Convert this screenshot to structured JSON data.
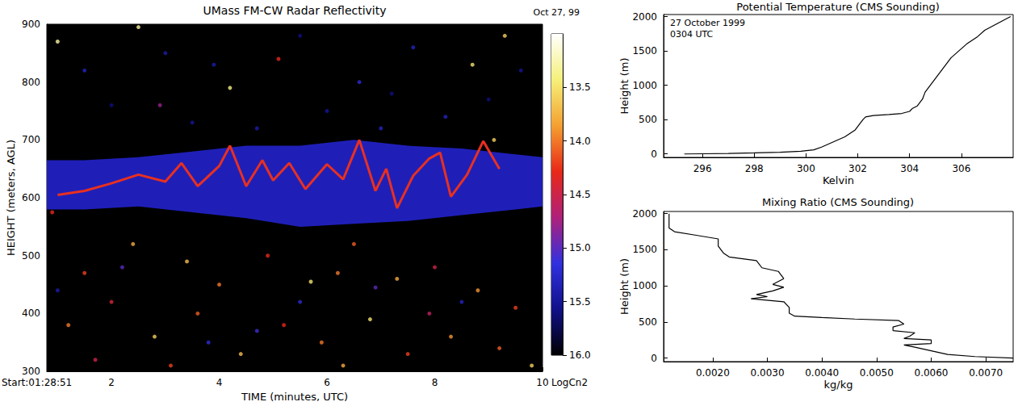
{
  "chart_data": [
    {
      "type": "image",
      "title": "UMass FM-CW Radar Reflectivity",
      "subtitle": "Oct 27, 99",
      "x_label": "TIME (minutes, UTC)",
      "y_label": "HEIGHT (meters, AGL)",
      "annotation": "Start:01:28:51",
      "xlim": [
        0.8,
        10
      ],
      "xticks": [
        2,
        4,
        6,
        8,
        10
      ],
      "ylim": [
        300,
        900
      ],
      "yticks": [
        300,
        400,
        500,
        600,
        700,
        800,
        900
      ],
      "grid": false,
      "layer": {
        "color": "#2424d8",
        "x": [
          0.8,
          1.5,
          2.5,
          3.5,
          4.5,
          5.5,
          6.5,
          7.5,
          8.5,
          9.5,
          10
        ],
        "lower": [
          580,
          580,
          585,
          575,
          565,
          550,
          555,
          560,
          570,
          580,
          585
        ],
        "upper": [
          665,
          665,
          670,
          680,
          690,
          690,
          700,
          690,
          685,
          675,
          670
        ]
      },
      "core": {
        "color": "#e83020",
        "x": [
          1.0,
          1.5,
          2.0,
          2.5,
          3.0,
          3.3,
          3.6,
          4.0,
          4.2,
          4.5,
          4.8,
          5.0,
          5.3,
          5.6,
          6.0,
          6.3,
          6.6,
          6.9,
          7.1,
          7.3,
          7.6,
          7.9,
          8.1,
          8.3,
          8.6,
          8.9,
          9.2
        ],
        "values": [
          605,
          612,
          625,
          640,
          628,
          660,
          620,
          655,
          690,
          620,
          665,
          630,
          660,
          615,
          658,
          632,
          700,
          612,
          650,
          582,
          638,
          668,
          678,
          602,
          640,
          698,
          650
        ]
      },
      "echoes": {
        "x": [
          1.0,
          2.5,
          9.3,
          8.7,
          4.2,
          5.1,
          2.9,
          6.6,
          7.6,
          3.9,
          9.1,
          0.9,
          2.4,
          1.5,
          3.4,
          4.0,
          4.9,
          5.7,
          6.2,
          6.5,
          7.3,
          8.0,
          8.8,
          9.5,
          1.2,
          2.0,
          2.8,
          3.6,
          4.4,
          5.2,
          5.9,
          6.8,
          7.5,
          8.3,
          9.2,
          9.8,
          1.7,
          3.1,
          6.3,
          7.9,
          2.2,
          5.5,
          4.7,
          8.5,
          1.0,
          3.8,
          6.9,
          1.5,
          2.0,
          3.5,
          4.7,
          6.0,
          7.2,
          8.2,
          9.6,
          5.5,
          3.0,
          7.0,
          9.0
        ],
        "y": [
          870,
          895,
          880,
          830,
          790,
          840,
          760,
          800,
          860,
          830,
          700,
          575,
          520,
          470,
          490,
          450,
          500,
          455,
          470,
          520,
          460,
          480,
          440,
          410,
          380,
          420,
          360,
          400,
          330,
          380,
          350,
          390,
          330,
          360,
          340,
          310,
          320,
          310,
          310,
          400,
          480,
          420,
          370,
          420,
          440,
          350,
          445,
          820,
          760,
          730,
          720,
          750,
          780,
          740,
          820,
          880,
          850,
          720,
          770
        ],
        "values": [
          13.3,
          13.3,
          13.6,
          13.5,
          13.4,
          14.3,
          14.8,
          15.2,
          15.3,
          15.4,
          13.6,
          14.3,
          13.8,
          14.2,
          13.7,
          14.0,
          14.3,
          13.5,
          14.0,
          14.1,
          13.8,
          14.5,
          13.9,
          14.2,
          14.0,
          14.4,
          13.6,
          14.1,
          13.7,
          14.3,
          14.0,
          13.5,
          14.2,
          13.9,
          14.1,
          13.6,
          14.5,
          14.2,
          13.8,
          14.6,
          15.0,
          15.2,
          15.1,
          15.3,
          15.4,
          15.2,
          15.0,
          15.3,
          15.6,
          15.5,
          15.4,
          15.5,
          15.6,
          15.3,
          15.5,
          15.6,
          15.4,
          15.3,
          15.6
        ]
      },
      "colorbar": {
        "label": "LogCn2",
        "range": [
          16.0,
          13.0
        ],
        "ticks": [
          13.5,
          {
            "value": 14,
            "label": "14.0"
          },
          14.5,
          {
            "value": 15,
            "label": "15.0"
          },
          15.5,
          {
            "value": 16,
            "label": "16.0"
          }
        ]
      }
    },
    {
      "type": "line",
      "title": "Potential Temperature (CMS Sounding)",
      "annotations": [
        "27 October 1999",
        "0304 UTC"
      ],
      "x_label": "Kelvin",
      "y_label": "Height (m)",
      "xlim": [
        294.5,
        308
      ],
      "xticks": [
        296,
        298,
        300,
        302,
        304,
        306
      ],
      "ylim": [
        -50,
        2030
      ],
      "yticks": [
        0,
        500,
        1000,
        1500,
        2000
      ],
      "grid": false,
      "color": "#000000",
      "x": [
        295.3,
        296,
        297,
        298,
        299,
        299.8,
        300.3,
        300.6,
        300.9,
        301.2,
        301.5,
        301.7,
        301.9,
        302.0,
        302.1,
        302.2,
        302.3,
        302.6,
        303.2,
        303.7,
        304.0,
        304.1,
        304.3,
        304.4,
        304.5,
        304.6,
        304.8,
        305.0,
        305.2,
        305.4,
        305.6,
        305.9,
        306.2,
        306.6,
        306.9,
        307.4,
        307.9
      ],
      "y": [
        0,
        3,
        8,
        15,
        25,
        40,
        60,
        100,
        150,
        200,
        250,
        300,
        350,
        400,
        450,
        500,
        540,
        560,
        575,
        590,
        620,
        660,
        700,
        750,
        800,
        900,
        1000,
        1100,
        1200,
        1300,
        1400,
        1500,
        1600,
        1700,
        1800,
        1900,
        2000
      ]
    },
    {
      "type": "line",
      "title": "Mixing Ratio (CMS Sounding)",
      "x_label": "kg/kg",
      "y_label": "Height (m)",
      "xlim": [
        0.0011,
        0.0075
      ],
      "xticks": [
        {
          "value": 0.002,
          "label": "0.0020"
        },
        {
          "value": 0.003,
          "label": "0.0030"
        },
        {
          "value": 0.004,
          "label": "0.0040"
        },
        {
          "value": 0.005,
          "label": "0.0050"
        },
        {
          "value": 0.006,
          "label": "0.0060"
        },
        {
          "value": 0.007,
          "label": "0.0070"
        }
      ],
      "ylim": [
        -50,
        2030
      ],
      "yticks": [
        0,
        500,
        1000,
        1500,
        2000
      ],
      "grid": false,
      "color": "#000000",
      "x": [
        0.0075,
        0.0068,
        0.0063,
        0.006,
        0.0057,
        0.0055,
        0.006,
        0.006,
        0.0055,
        0.0056,
        0.0057,
        0.0053,
        0.0053,
        0.0055,
        0.0054,
        0.0046,
        0.004,
        0.0035,
        0.0034,
        0.0034,
        0.0033,
        0.0027,
        0.003,
        0.0028,
        0.0031,
        0.0033,
        0.0031,
        0.0033,
        0.0032,
        0.0029,
        0.0028,
        0.0023,
        0.0022,
        0.0021,
        0.0021,
        0.0017,
        0.0013,
        0.0012,
        0.0012
      ],
      "y": [
        0,
        20,
        50,
        100,
        150,
        180,
        200,
        250,
        270,
        300,
        350,
        380,
        430,
        470,
        520,
        540,
        560,
        580,
        620,
        700,
        780,
        820,
        850,
        880,
        930,
        980,
        1020,
        1100,
        1200,
        1250,
        1350,
        1400,
        1450,
        1550,
        1650,
        1700,
        1750,
        1800,
        2000
      ]
    }
  ]
}
